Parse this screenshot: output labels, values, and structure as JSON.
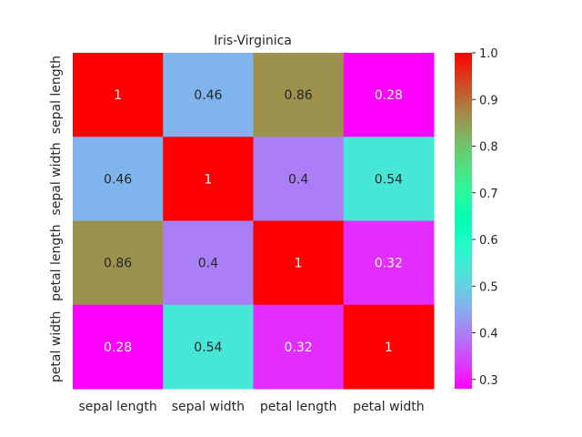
{
  "chart_data": {
    "type": "heatmap",
    "title": "Iris-Virginica",
    "x_categories": [
      "sepal length",
      "sepal width",
      "petal length",
      "petal width"
    ],
    "y_categories": [
      "sepal length",
      "sepal width",
      "petal length",
      "petal width"
    ],
    "values": [
      [
        1,
        0.46,
        0.86,
        0.28
      ],
      [
        0.46,
        1,
        0.4,
        0.54
      ],
      [
        0.86,
        0.4,
        1,
        0.32
      ],
      [
        0.28,
        0.54,
        0.32,
        1
      ]
    ],
    "colormap": "rainbow",
    "colorbar": {
      "vmin": 0.28,
      "vmax": 1.0,
      "ticks": [
        0.3,
        0.4,
        0.5,
        0.6,
        0.7,
        0.8,
        0.9,
        1.0
      ],
      "tick_labels": [
        "0.3",
        "0.4",
        "0.5",
        "0.6",
        "0.7",
        "0.8",
        "0.9",
        "1.0"
      ]
    }
  }
}
